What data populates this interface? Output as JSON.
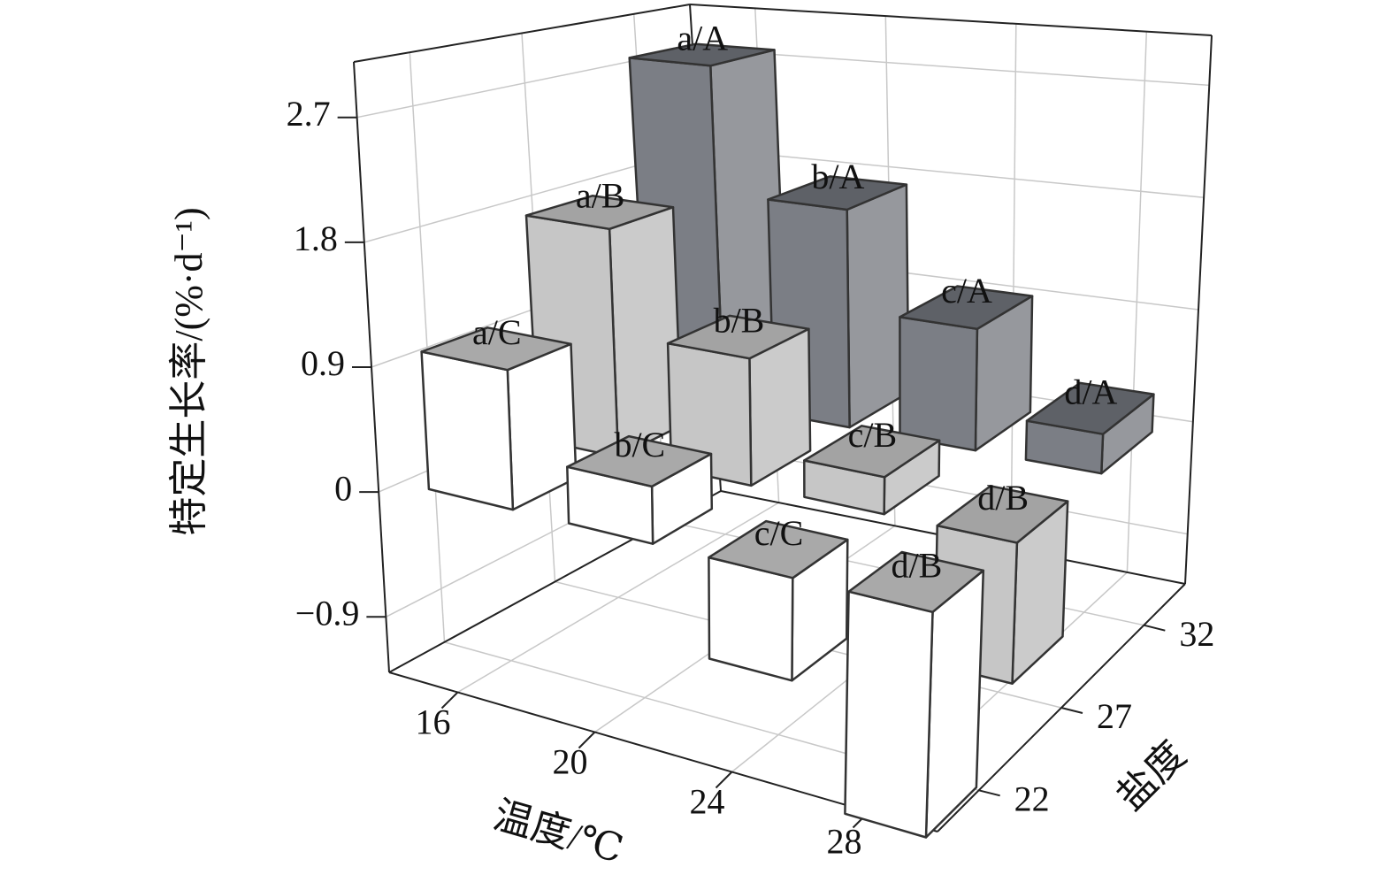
{
  "chart_data": {
    "type": "bar3d",
    "categories": [
      "16",
      "20",
      "24",
      "28"
    ],
    "depth_categories": [
      "22",
      "27",
      "32"
    ],
    "xlabel": "温度/℃",
    "ylabel": "盐度",
    "zlabel": "特定生长率/(%·d⁻¹)",
    "zlim": [
      -1.3,
      3.1
    ],
    "zticks": [
      {
        "value": -0.9,
        "label": "−0.9"
      },
      0,
      0.9,
      1.8,
      2.7
    ],
    "grid": true,
    "series": [
      {
        "color": "#ffffff",
        "side_color": "#ffffff",
        "top_color": "#a9a9a9",
        "values": [
          1.0,
          0.4,
          -0.7,
          -1.5
        ],
        "labels": [
          "a/C",
          "b/C",
          "c/C",
          "d/B"
        ]
      },
      {
        "color": "#c6c6c6",
        "side_color": "#cbcbcb",
        "top_color": "#a3a3a3",
        "values": [
          1.75,
          0.95,
          0.27,
          -1.0
        ],
        "labels": [
          "a/B",
          "b/B",
          "c/B",
          "d/B"
        ]
      },
      {
        "color": "#7b7e85",
        "side_color": "#96989d",
        "top_color": "#5e6167",
        "values": [
          2.8,
          1.75,
          0.95,
          0.3
        ],
        "labels": [
          "a/A",
          "b/A",
          "c/A",
          "d/A"
        ]
      }
    ]
  }
}
